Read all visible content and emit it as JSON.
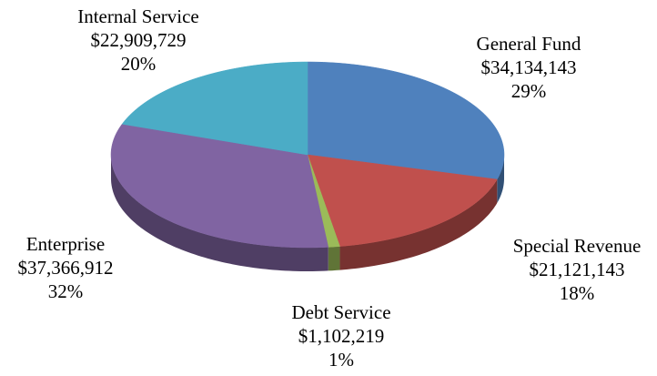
{
  "chart_data": {
    "type": "pie",
    "categories": [
      "General Fund",
      "Special Revenue",
      "Debt Service",
      "Enterprise",
      "Internal Service"
    ],
    "values": [
      34134143,
      21121143,
      1102219,
      37366912,
      22909729
    ],
    "value_labels": [
      "$34,134,143",
      "$21,121,143",
      "$1,102,219",
      "$37,366,912",
      "$22,909,729"
    ],
    "percent_labels": [
      "29%",
      "18%",
      "1%",
      "32%",
      "20%"
    ],
    "colors": [
      "#4f81bd",
      "#c0504d",
      "#9bbb59",
      "#8064a2",
      "#4bacc6"
    ]
  }
}
